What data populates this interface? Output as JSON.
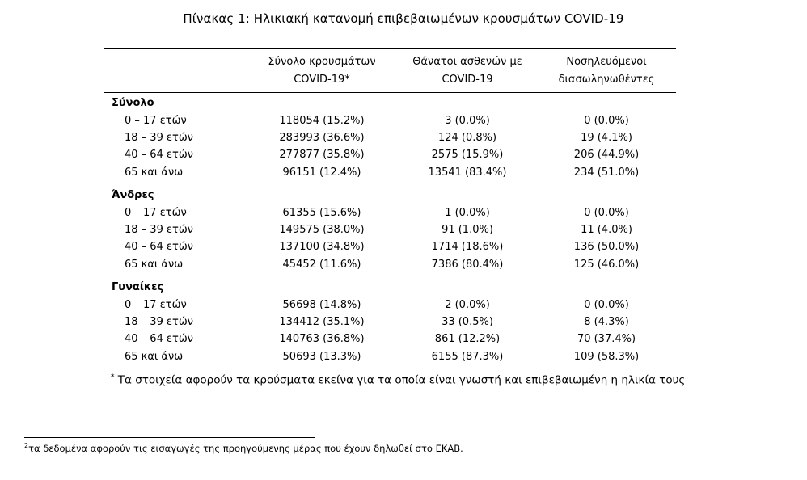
{
  "title": "Πίνακας 1: Ηλικιακή κατανομή επιβεβαιωμένων κρουσμάτων COVID-19",
  "headers": {
    "col1_line1": "Σύνολο κρουσμάτων",
    "col1_line2": "COVID-19*",
    "col2_line1": "Θάνατοι ασθενών με",
    "col2_line2": "COVID-19",
    "col3_line1": "Νοσηλευόμενοι",
    "col3_line2": "διασωληνωθέντες"
  },
  "sections": [
    {
      "label": "Σύνολο",
      "rows": [
        {
          "age": "0 – 17 ετών",
          "cases": "118054 (15.2%)",
          "deaths": "3 (0.0%)",
          "intubated": "0 (0.0%)"
        },
        {
          "age": "18 – 39 ετών",
          "cases": "283993 (36.6%)",
          "deaths": "124 (0.8%)",
          "intubated": "19 (4.1%)"
        },
        {
          "age": "40 – 64 ετών",
          "cases": "277877 (35.8%)",
          "deaths": "2575 (15.9%)",
          "intubated": "206 (44.9%)"
        },
        {
          "age": "65 και άνω",
          "cases": "96151 (12.4%)",
          "deaths": "13541 (83.4%)",
          "intubated": "234 (51.0%)"
        }
      ]
    },
    {
      "label": "Άνδρες",
      "rows": [
        {
          "age": "0 – 17 ετών",
          "cases": "61355 (15.6%)",
          "deaths": "1 (0.0%)",
          "intubated": "0 (0.0%)"
        },
        {
          "age": "18 – 39 ετών",
          "cases": "149575 (38.0%)",
          "deaths": "91 (1.0%)",
          "intubated": "11 (4.0%)"
        },
        {
          "age": "40 – 64 ετών",
          "cases": "137100 (34.8%)",
          "deaths": "1714 (18.6%)",
          "intubated": "136 (50.0%)"
        },
        {
          "age": "65 και άνω",
          "cases": "45452 (11.6%)",
          "deaths": "7386 (80.4%)",
          "intubated": "125 (46.0%)"
        }
      ]
    },
    {
      "label": "Γυναίκες",
      "rows": [
        {
          "age": "0 – 17 ετών",
          "cases": "56698 (14.8%)",
          "deaths": "2 (0.0%)",
          "intubated": "0 (0.0%)"
        },
        {
          "age": "18 – 39 ετών",
          "cases": "134412 (35.1%)",
          "deaths": "33 (0.5%)",
          "intubated": "8 (4.3%)"
        },
        {
          "age": "40 – 64 ετών",
          "cases": "140763 (36.8%)",
          "deaths": "861 (12.2%)",
          "intubated": "70 (37.4%)"
        },
        {
          "age": "65 και άνω",
          "cases": "50693 (13.3%)",
          "deaths": "6155 (87.3%)",
          "intubated": "109 (58.3%)"
        }
      ]
    }
  ],
  "note_marker": "*",
  "note": "Τα στοιχεία αφορούν τα κρούσματα εκείνα για τα οποία είναι γνωστή και επιβεβαιωμένη η ηλικία τους",
  "footnote_marker": "2",
  "footnote": "τα δεδομένα αφορούν τις εισαγωγές της προηγούμενης μέρας που έχουν δηλωθεί στο ΕΚΑΒ."
}
